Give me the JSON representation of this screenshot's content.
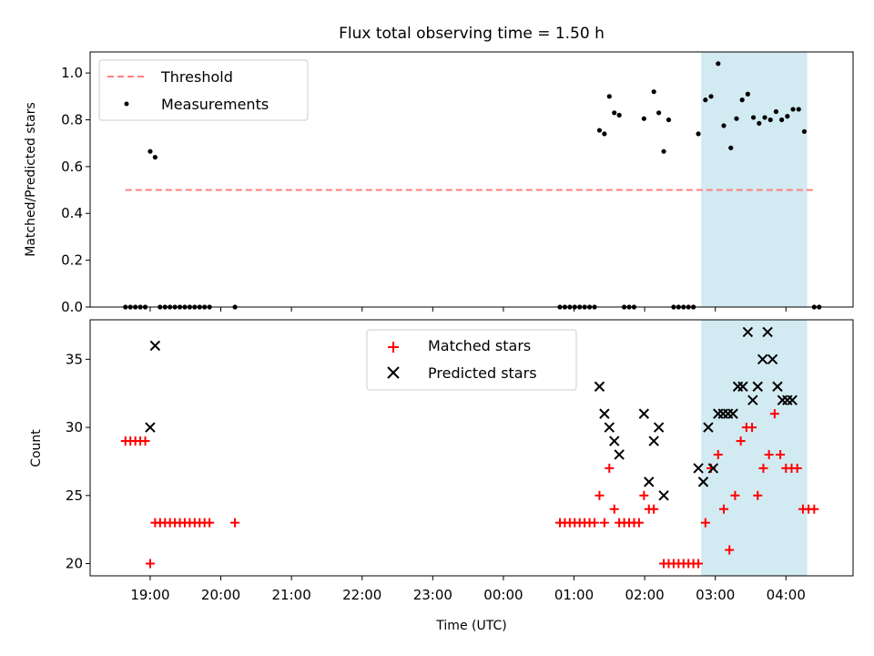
{
  "figure": {
    "title": "Flux total observing time = 1.50 h"
  },
  "colors": {
    "threshold": "#ff7f7f",
    "measurement": "#000000",
    "matched": "#ff0000",
    "predicted": "#000000",
    "shade": "#add8e6"
  },
  "chart_data": [
    {
      "type": "scatter",
      "title": "Flux total observing time = 1.50 h",
      "xlabel": "",
      "ylabel": "Matched/Predicted stars",
      "x_unit": "hours since 19:00 UTC (axis labels show clock time)",
      "xlim": [
        -0.85,
        9.95
      ],
      "ylim": [
        0,
        1.09
      ],
      "yticks": [
        0.0,
        0.2,
        0.4,
        0.6,
        0.8,
        1.0
      ],
      "ytick_labels": [
        "0.0",
        "0.2",
        "0.4",
        "0.6",
        "0.8",
        "1.0"
      ],
      "xticks": [
        0,
        1,
        2,
        3,
        4,
        5,
        6,
        7,
        8,
        9
      ],
      "grid": false,
      "legend": {
        "placement": "upper-left",
        "entries": [
          "Threshold",
          "Measurements"
        ]
      },
      "shaded_region": {
        "x": [
          7.8,
          9.3
        ]
      },
      "series": [
        {
          "name": "Threshold",
          "kind": "line",
          "style": "dashed",
          "x": [
            -0.35,
            9.4
          ],
          "y": [
            0.5,
            0.5
          ]
        },
        {
          "name": "Measurements",
          "kind": "points",
          "marker": "dot",
          "points": [
            [
              -0.35,
              0.0
            ],
            [
              -0.28,
              0.0
            ],
            [
              -0.21,
              0.0
            ],
            [
              -0.14,
              0.0
            ],
            [
              -0.07,
              0.0
            ],
            [
              0.0,
              0.665
            ],
            [
              0.07,
              0.64
            ],
            [
              0.14,
              0.0
            ],
            [
              0.21,
              0.0
            ],
            [
              0.28,
              0.0
            ],
            [
              0.35,
              0.0
            ],
            [
              0.42,
              0.0
            ],
            [
              0.49,
              0.0
            ],
            [
              0.56,
              0.0
            ],
            [
              0.63,
              0.0
            ],
            [
              0.7,
              0.0
            ],
            [
              0.77,
              0.0
            ],
            [
              0.84,
              0.0
            ],
            [
              1.2,
              0.0
            ],
            [
              5.8,
              0.0
            ],
            [
              5.87,
              0.0
            ],
            [
              5.94,
              0.0
            ],
            [
              6.01,
              0.0
            ],
            [
              6.08,
              0.0
            ],
            [
              6.15,
              0.0
            ],
            [
              6.22,
              0.0
            ],
            [
              6.29,
              0.0
            ],
            [
              6.36,
              0.755
            ],
            [
              6.43,
              0.74
            ],
            [
              6.5,
              0.9
            ],
            [
              6.57,
              0.83
            ],
            [
              6.64,
              0.82
            ],
            [
              6.71,
              0.0
            ],
            [
              6.78,
              0.0
            ],
            [
              6.85,
              0.0
            ],
            [
              6.99,
              0.805
            ],
            [
              7.13,
              0.92
            ],
            [
              7.2,
              0.83
            ],
            [
              7.27,
              0.665
            ],
            [
              7.34,
              0.8
            ],
            [
              7.41,
              0.0
            ],
            [
              7.48,
              0.0
            ],
            [
              7.55,
              0.0
            ],
            [
              7.62,
              0.0
            ],
            [
              7.69,
              0.0
            ],
            [
              7.76,
              0.74
            ],
            [
              7.86,
              0.885
            ],
            [
              7.94,
              0.9
            ],
            [
              8.04,
              1.04
            ],
            [
              8.12,
              0.775
            ],
            [
              8.22,
              0.68
            ],
            [
              8.3,
              0.805
            ],
            [
              8.38,
              0.885
            ],
            [
              8.46,
              0.91
            ],
            [
              8.54,
              0.81
            ],
            [
              8.62,
              0.785
            ],
            [
              8.7,
              0.81
            ],
            [
              8.78,
              0.8
            ],
            [
              8.86,
              0.835
            ],
            [
              8.94,
              0.8
            ],
            [
              9.02,
              0.815
            ],
            [
              9.1,
              0.845
            ],
            [
              9.18,
              0.845
            ],
            [
              9.26,
              0.75
            ],
            [
              9.4,
              0.0
            ],
            [
              9.47,
              0.0
            ]
          ]
        }
      ]
    },
    {
      "type": "scatter",
      "title": "",
      "xlabel": "Time (UTC)",
      "ylabel": "Count",
      "x_unit": "hours since 19:00 UTC (axis labels show clock time)",
      "xlim": [
        -0.85,
        9.95
      ],
      "ylim": [
        19.1,
        37.9
      ],
      "yticks": [
        20,
        25,
        30,
        35
      ],
      "ytick_labels": [
        "20",
        "25",
        "30",
        "35"
      ],
      "xticks": [
        0,
        1,
        2,
        3,
        4,
        5,
        6,
        7,
        8,
        9
      ],
      "xtick_labels": [
        "19:00",
        "20:00",
        "21:00",
        "22:00",
        "23:00",
        "00:00",
        "01:00",
        "02:00",
        "03:00",
        "04:00"
      ],
      "grid": false,
      "legend": {
        "placement": "upper-center",
        "entries": [
          "Matched stars",
          "Predicted stars"
        ]
      },
      "shaded_region": {
        "x": [
          7.8,
          9.3
        ]
      },
      "series": [
        {
          "name": "Matched stars",
          "kind": "points",
          "marker": "plus",
          "points": [
            [
              -0.35,
              29
            ],
            [
              -0.28,
              29
            ],
            [
              -0.21,
              29
            ],
            [
              -0.14,
              29
            ],
            [
              -0.07,
              29
            ],
            [
              0.0,
              20
            ],
            [
              0.07,
              23
            ],
            [
              0.14,
              23
            ],
            [
              0.21,
              23
            ],
            [
              0.28,
              23
            ],
            [
              0.35,
              23
            ],
            [
              0.42,
              23
            ],
            [
              0.49,
              23
            ],
            [
              0.56,
              23
            ],
            [
              0.63,
              23
            ],
            [
              0.7,
              23
            ],
            [
              0.77,
              23
            ],
            [
              0.84,
              23
            ],
            [
              1.2,
              23
            ],
            [
              5.8,
              23
            ],
            [
              5.87,
              23
            ],
            [
              5.94,
              23
            ],
            [
              6.01,
              23
            ],
            [
              6.08,
              23
            ],
            [
              6.15,
              23
            ],
            [
              6.22,
              23
            ],
            [
              6.29,
              23
            ],
            [
              6.36,
              25
            ],
            [
              6.43,
              23
            ],
            [
              6.5,
              27
            ],
            [
              6.57,
              24
            ],
            [
              6.64,
              23
            ],
            [
              6.71,
              23
            ],
            [
              6.78,
              23
            ],
            [
              6.85,
              23
            ],
            [
              6.92,
              23
            ],
            [
              6.99,
              25
            ],
            [
              7.06,
              24
            ],
            [
              7.13,
              24
            ],
            [
              7.27,
              20
            ],
            [
              7.34,
              20
            ],
            [
              7.41,
              20
            ],
            [
              7.48,
              20
            ],
            [
              7.55,
              20
            ],
            [
              7.62,
              20
            ],
            [
              7.69,
              20
            ],
            [
              7.76,
              20
            ],
            [
              7.86,
              23
            ],
            [
              7.94,
              27
            ],
            [
              8.04,
              28
            ],
            [
              8.12,
              24
            ],
            [
              8.2,
              21
            ],
            [
              8.28,
              25
            ],
            [
              8.36,
              29
            ],
            [
              8.44,
              30
            ],
            [
              8.52,
              30
            ],
            [
              8.6,
              25
            ],
            [
              8.68,
              27
            ],
            [
              8.76,
              28
            ],
            [
              8.84,
              31
            ],
            [
              8.92,
              28
            ],
            [
              9.0,
              27
            ],
            [
              9.08,
              27
            ],
            [
              9.16,
              27
            ],
            [
              9.24,
              24
            ],
            [
              9.32,
              24
            ],
            [
              9.4,
              24
            ]
          ]
        },
        {
          "name": "Predicted stars",
          "kind": "points",
          "marker": "x",
          "points": [
            [
              0.0,
              30
            ],
            [
              0.07,
              36
            ],
            [
              6.36,
              33
            ],
            [
              6.43,
              31
            ],
            [
              6.5,
              30
            ],
            [
              6.57,
              29
            ],
            [
              6.64,
              28
            ],
            [
              6.99,
              31
            ],
            [
              7.06,
              26
            ],
            [
              7.13,
              29
            ],
            [
              7.2,
              30
            ],
            [
              7.27,
              25
            ],
            [
              7.76,
              27
            ],
            [
              7.83,
              26
            ],
            [
              7.9,
              30
            ],
            [
              7.97,
              27
            ],
            [
              8.04,
              31
            ],
            [
              8.11,
              31
            ],
            [
              8.18,
              31
            ],
            [
              8.25,
              31
            ],
            [
              8.32,
              33
            ],
            [
              8.39,
              33
            ],
            [
              8.46,
              37
            ],
            [
              8.53,
              32
            ],
            [
              8.6,
              33
            ],
            [
              8.67,
              35
            ],
            [
              8.74,
              37
            ],
            [
              8.81,
              35
            ],
            [
              8.88,
              33
            ],
            [
              8.95,
              32
            ],
            [
              9.02,
              32
            ],
            [
              9.09,
              32
            ]
          ]
        }
      ]
    }
  ]
}
